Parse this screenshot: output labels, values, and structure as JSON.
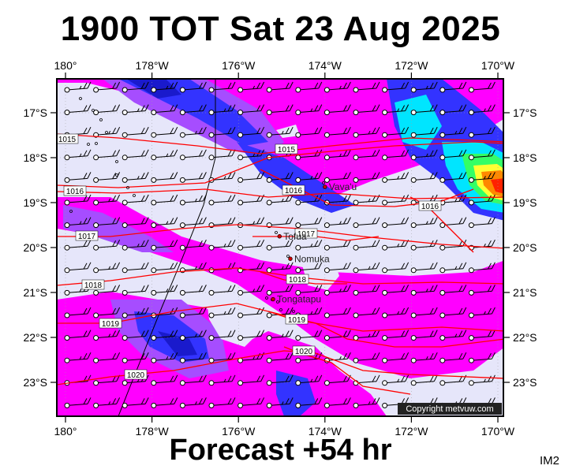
{
  "header": {
    "title": "1900 TOT Sat 23 Aug 2025"
  },
  "footer": {
    "forecast": "Forecast +54 hr",
    "tag": "IM2"
  },
  "copyright": "Copyright metvuw.com",
  "map": {
    "lon_labels_top": [
      "180°",
      "178°W",
      "176°W",
      "174°W",
      "172°W",
      "170°W"
    ],
    "lon_labels_bottom": [
      "180°",
      "178°W",
      "176°W",
      "174°W",
      "172°W",
      "170°W"
    ],
    "lat_labels_left": [
      "17°S",
      "18°S",
      "19°S",
      "20°S",
      "21°S",
      "22°S",
      "23°S"
    ],
    "lat_labels_right": [
      "17°S",
      "18°S",
      "19°S",
      "20°S",
      "21°S",
      "22°S",
      "23°S"
    ],
    "places": [
      {
        "name": "Vava'u",
        "lon": -174.0,
        "lat": -18.65
      },
      {
        "name": "Tofua",
        "lon": -175.05,
        "lat": -19.75
      },
      {
        "name": "Nomuka",
        "lon": -174.8,
        "lat": -20.25
      },
      {
        "name": "Tongatapu",
        "lon": -175.2,
        "lat": -21.15
      }
    ],
    "isobars": [
      {
        "label": "1015"
      },
      {
        "label": "1015"
      },
      {
        "label": "1016"
      },
      {
        "label": "1016"
      },
      {
        "label": "1016"
      },
      {
        "label": "1017"
      },
      {
        "label": "1017"
      },
      {
        "label": "1018"
      },
      {
        "label": "1018"
      },
      {
        "label": "1019"
      },
      {
        "label": "1019"
      },
      {
        "label": "1020"
      },
      {
        "label": "1020"
      }
    ],
    "colors": {
      "background": "#e6e6fa",
      "magenta": "#ff00ff",
      "purple": "#a64dff",
      "blue": "#3333ff",
      "navy": "#1a1acc",
      "cyan": "#00e5ff",
      "green": "#33ff66",
      "yellow": "#ffff33",
      "orange": "#ff8800",
      "red": "#ff2200",
      "isobar": "#ff0000"
    }
  }
}
